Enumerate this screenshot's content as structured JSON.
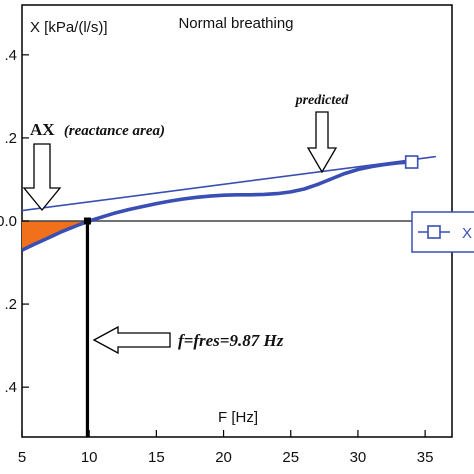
{
  "chart_data": {
    "type": "line",
    "title": "Normal breathing",
    "ylabel": "X [kPa/(l/s)]",
    "xlabel": "F [Hz]",
    "xlim": [
      5,
      37
    ],
    "ylim": [
      -0.52,
      0.52
    ],
    "x_ticks": [
      5,
      10,
      15,
      20,
      25,
      30,
      35
    ],
    "y_ticks": [
      -0.4,
      -0.2,
      0.0,
      0.2,
      0.4
    ],
    "y_tick_labels": [
      ".4",
      ".2",
      "0.0",
      ".2",
      ".4"
    ],
    "series": [
      {
        "name": "predicted",
        "style": "thin",
        "x": [
          5,
          35.8
        ],
        "y": [
          0.025,
          0.155
        ]
      },
      {
        "name": "",
        "style": "thick",
        "x": [
          5,
          6,
          7,
          8,
          9,
          10,
          11,
          12,
          13,
          14,
          15,
          16,
          17,
          18,
          19,
          20,
          21,
          22,
          23,
          24,
          25,
          26,
          27,
          28,
          29,
          30,
          31,
          32,
          33,
          34
        ],
        "y": [
          -0.07,
          -0.055,
          -0.04,
          -0.025,
          -0.012,
          0.0,
          0.01,
          0.02,
          0.028,
          0.035,
          0.042,
          0.048,
          0.053,
          0.057,
          0.06,
          0.062,
          0.063,
          0.063,
          0.064,
          0.066,
          0.07,
          0.077,
          0.088,
          0.101,
          0.114,
          0.124,
          0.131,
          0.136,
          0.14,
          0.142
        ]
      }
    ],
    "annotations": {
      "predicted_label": "predicted",
      "ax_label_bold": "AX",
      "ax_label_italic": "(reactance area)",
      "fres_label": "f=fres=9.87 Hz",
      "fres_value": 9.87,
      "marker_point": {
        "x": 34,
        "y": 0.142
      }
    },
    "legend": {
      "placement": "right",
      "text": "X"
    },
    "colors": {
      "series": "#3a4fb4",
      "area_fill": "#f0701c",
      "axis": "#000000",
      "zero_line": "#444444"
    },
    "grid": false
  }
}
